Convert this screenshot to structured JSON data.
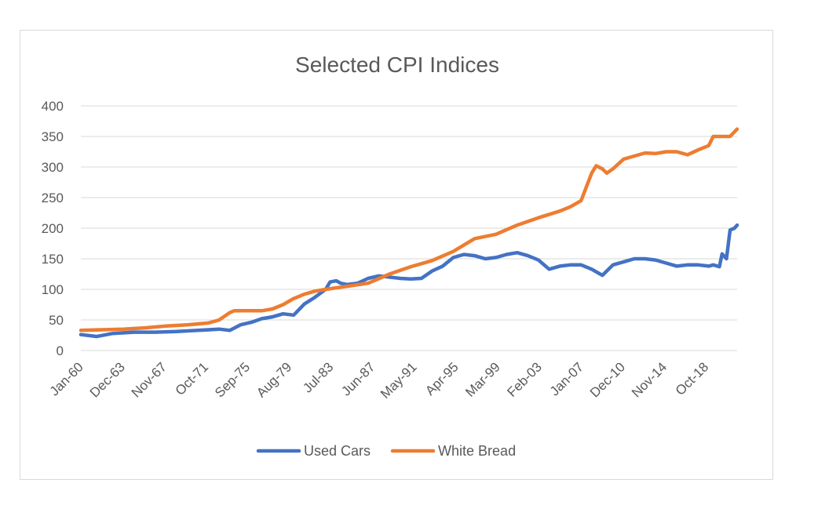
{
  "chart_data": {
    "type": "line",
    "title": "Selected CPI Indices",
    "xlabel": "",
    "ylabel": "",
    "ylim": [
      0,
      400
    ],
    "yticks": [
      0,
      50,
      100,
      150,
      200,
      250,
      300,
      350,
      400
    ],
    "x_tick_labels": [
      "Jan-60",
      "Dec-63",
      "Nov-67",
      "Oct-71",
      "Sep-75",
      "Aug-79",
      "Jul-83",
      "Jun-87",
      "May-91",
      "Apr-95",
      "Mar-99",
      "Feb-03",
      "Jan-07",
      "Dec-10",
      "Nov-14",
      "Oct-18"
    ],
    "xlim": [
      "Jan-60",
      "Sep-21"
    ],
    "grid": true,
    "legend_position": "bottom",
    "series": [
      {
        "name": "Used Cars",
        "color": "#4472C4",
        "points": [
          [
            "Jan-60",
            26
          ],
          [
            "Jul-61",
            23
          ],
          [
            "Jan-63",
            28
          ],
          [
            "Jan-65",
            30
          ],
          [
            "Jan-67",
            30
          ],
          [
            "Jan-69",
            31
          ],
          [
            "Jan-71",
            33
          ],
          [
            "Jan-73",
            35
          ],
          [
            "Jan-74",
            33
          ],
          [
            "Jan-75",
            42
          ],
          [
            "Jan-76",
            46
          ],
          [
            "Jan-77",
            52
          ],
          [
            "Jan-78",
            55
          ],
          [
            "Jan-79",
            60
          ],
          [
            "Jan-80",
            58
          ],
          [
            "Jan-81",
            76
          ],
          [
            "Jan-82",
            87
          ],
          [
            "Jan-83",
            100
          ],
          [
            "Jun-83",
            112
          ],
          [
            "Jan-84",
            114
          ],
          [
            "Jun-84",
            110
          ],
          [
            "Jan-85",
            108
          ],
          [
            "Jan-86",
            110
          ],
          [
            "Jan-87",
            118
          ],
          [
            "Jan-88",
            122
          ],
          [
            "Jan-89",
            120
          ],
          [
            "Jan-90",
            118
          ],
          [
            "Jan-91",
            117
          ],
          [
            "Jan-92",
            118
          ],
          [
            "Jan-93",
            130
          ],
          [
            "Jan-94",
            138
          ],
          [
            "Jan-95",
            152
          ],
          [
            "Jan-96",
            157
          ],
          [
            "Jan-97",
            155
          ],
          [
            "Jan-98",
            150
          ],
          [
            "Jan-99",
            152
          ],
          [
            "Jan-00",
            157
          ],
          [
            "Jan-01",
            160
          ],
          [
            "Jan-02",
            155
          ],
          [
            "Jan-03",
            148
          ],
          [
            "Jan-04",
            133
          ],
          [
            "Jan-05",
            138
          ],
          [
            "Jan-06",
            140
          ],
          [
            "Jan-07",
            140
          ],
          [
            "Jan-08",
            133
          ],
          [
            "Jan-09",
            123
          ],
          [
            "Jan-10",
            140
          ],
          [
            "Jan-11",
            145
          ],
          [
            "Jan-12",
            150
          ],
          [
            "Jan-13",
            150
          ],
          [
            "Jan-14",
            148
          ],
          [
            "Jan-15",
            143
          ],
          [
            "Jan-16",
            138
          ],
          [
            "Jan-17",
            140
          ],
          [
            "Jan-18",
            140
          ],
          [
            "Jan-19",
            138
          ],
          [
            "Jun-19",
            140
          ],
          [
            "Jan-20",
            137
          ],
          [
            "Apr-20",
            158
          ],
          [
            "Sep-20",
            150
          ],
          [
            "Jan-21",
            197
          ],
          [
            "Jun-21",
            200
          ],
          [
            "Sep-21",
            205
          ]
        ]
      },
      {
        "name": "White Bread",
        "color": "#ED7D31",
        "points": [
          [
            "Jan-60",
            33
          ],
          [
            "Jan-62",
            34
          ],
          [
            "Jan-64",
            35
          ],
          [
            "Jan-66",
            37
          ],
          [
            "Jan-68",
            40
          ],
          [
            "Jan-70",
            42
          ],
          [
            "Jan-72",
            45
          ],
          [
            "Jan-73",
            50
          ],
          [
            "Jan-74",
            62
          ],
          [
            "Jun-74",
            65
          ],
          [
            "Jan-75",
            65
          ],
          [
            "Jan-77",
            65
          ],
          [
            "Jan-78",
            68
          ],
          [
            "Jan-79",
            75
          ],
          [
            "Jan-80",
            85
          ],
          [
            "Jan-81",
            92
          ],
          [
            "Jan-82",
            97
          ],
          [
            "Jan-83",
            100
          ],
          [
            "Jan-85",
            105
          ],
          [
            "Jan-87",
            110
          ],
          [
            "Jan-89",
            125
          ],
          [
            "Jan-91",
            137
          ],
          [
            "Jan-93",
            147
          ],
          [
            "Jan-95",
            162
          ],
          [
            "Jan-97",
            183
          ],
          [
            "Jan-99",
            190
          ],
          [
            "Jan-01",
            205
          ],
          [
            "Jan-03",
            217
          ],
          [
            "Jan-05",
            228
          ],
          [
            "Jan-06",
            235
          ],
          [
            "Jan-07",
            245
          ],
          [
            "Jan-08",
            290
          ],
          [
            "Jun-08",
            302
          ],
          [
            "Jan-09",
            297
          ],
          [
            "Jun-09",
            290
          ],
          [
            "Jan-10",
            297
          ],
          [
            "Jan-11",
            313
          ],
          [
            "Jan-12",
            318
          ],
          [
            "Jan-13",
            323
          ],
          [
            "Jan-14",
            322
          ],
          [
            "Jan-15",
            325
          ],
          [
            "Jan-16",
            325
          ],
          [
            "Jan-17",
            320
          ],
          [
            "Jan-18",
            328
          ],
          [
            "Jan-19",
            335
          ],
          [
            "Jun-19",
            350
          ],
          [
            "Jan-20",
            350
          ],
          [
            "Jan-21",
            350
          ],
          [
            "Sep-21",
            362
          ]
        ]
      }
    ]
  }
}
